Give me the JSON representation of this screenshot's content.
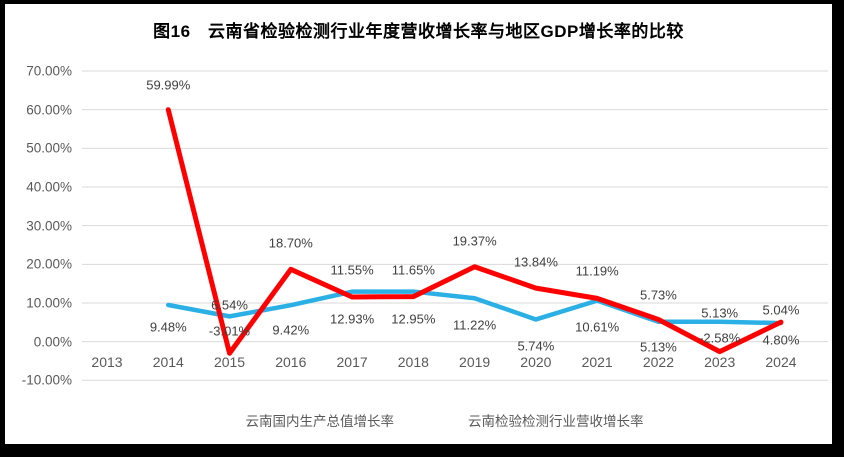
{
  "chart_data": {
    "type": "line",
    "title": "图16　云南省检验检测行业年度营收增长率与地区GDP增长率的比较",
    "categories": [
      "2013",
      "2014",
      "2015",
      "2016",
      "2017",
      "2018",
      "2019",
      "2020",
      "2021",
      "2022",
      "2023",
      "2024"
    ],
    "series": [
      {
        "name": "云南国内生产总值增长率",
        "color": "#2BB0E6",
        "values": [
          null,
          9.48,
          6.54,
          9.42,
          12.93,
          12.95,
          11.22,
          5.74,
          10.61,
          5.13,
          5.13,
          4.8
        ],
        "labels": [
          null,
          "9.48%",
          "6.54%",
          "9.42%",
          "12.93%",
          "12.95%",
          "11.22%",
          "5.74%",
          "10.61%",
          "5.13%",
          "5.13%",
          "4.80%"
        ],
        "label_dy": [
          null,
          22,
          -11,
          25,
          27,
          27,
          27,
          27,
          26,
          25,
          -9,
          17
        ]
      },
      {
        "name": "云南检验检测行业营收增长率",
        "color": "#FF0000",
        "values": [
          null,
          59.99,
          -3.01,
          18.7,
          11.55,
          11.65,
          19.37,
          13.84,
          11.19,
          5.73,
          -2.58,
          5.04
        ],
        "labels": [
          null,
          "59.99%",
          "-3.01%",
          "18.70%",
          "11.55%",
          "11.65%",
          "19.37%",
          "13.84%",
          "11.19%",
          "5.73%",
          "-2.58%",
          "5.04%"
        ],
        "label_dy": [
          null,
          -25,
          -22,
          -26,
          -27,
          -27,
          -26,
          -26,
          -27,
          -24,
          -14,
          -12
        ]
      }
    ],
    "y_axis": {
      "min": -10,
      "max": 70,
      "step": 10,
      "ticks": [
        "70.00%",
        "60.00%",
        "50.00%",
        "40.00%",
        "30.00%",
        "20.00%",
        "10.00%",
        "0.00%",
        "-10.00%"
      ]
    },
    "grid": true,
    "legend_position": "bottom",
    "colors": {
      "grid": "#D9D9D9",
      "tick_text": "#595959",
      "data_label_text": "#404040"
    }
  }
}
